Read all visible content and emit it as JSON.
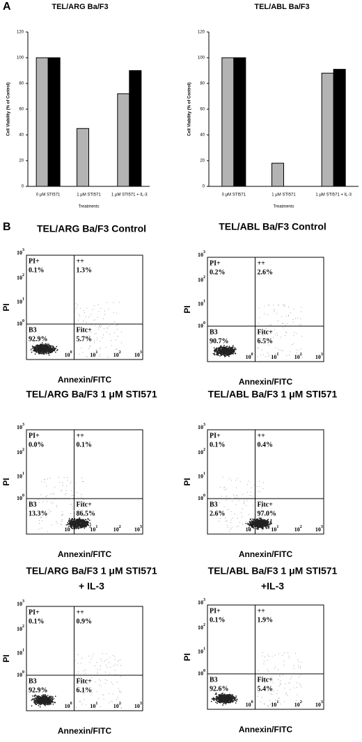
{
  "panel_a_label": "A",
  "chart_data": [
    {
      "type": "bar",
      "title": "TEL/ARG Ba/F3",
      "y_label": "Cell Viability (% of Control)",
      "x_label": "Treatments",
      "categories": [
        "0 μM STI571",
        "1 μM STI571",
        "1 μM STI571 + IL-3"
      ],
      "series": [
        {
          "color": "#b3b3b3",
          "values": [
            100,
            45,
            72
          ]
        },
        {
          "color": "#000000",
          "values": [
            100,
            null,
            90
          ]
        }
      ],
      "ylim": [
        0,
        120
      ],
      "yticks": [
        0,
        20,
        40,
        60,
        80,
        100,
        120
      ]
    },
    {
      "type": "bar",
      "title": "TEL/ABL Ba/F3",
      "y_label": "Cell Viability (% of Control)",
      "x_label": "Treatments",
      "categories": [
        "0 μM STI571",
        "1 μM STI571",
        "1 μM STI571 + IL-3"
      ],
      "series": [
        {
          "color": "#b3b3b3",
          "values": [
            100,
            18,
            88
          ]
        },
        {
          "color": "#000000",
          "values": [
            100,
            null,
            91
          ]
        }
      ],
      "ylim": [
        0,
        120
      ],
      "yticks": [
        0,
        20,
        40,
        60,
        80,
        100,
        120
      ]
    }
  ],
  "flow_plots": {
    "panel_label": "B",
    "y_label": "PI",
    "x_label": "Annexin/FITC",
    "tick_base": "10",
    "tick_exponents": [
      "0",
      "1",
      "2",
      "3"
    ],
    "plots": [
      {
        "title": [
          "TEL/ARG Ba/F3 Control"
        ],
        "quadrants": [
          {
            "label": "PI+",
            "percent": "0.1%"
          },
          {
            "label": "++",
            "percent": "1.3%"
          },
          {
            "label": "B3",
            "percent": "92.9%"
          },
          {
            "label": "Fitc+",
            "percent": "5.7%"
          }
        ]
      },
      {
        "title": [
          "TEL/ABL Ba/F3 Control"
        ],
        "quadrants": [
          {
            "label": "PI+",
            "percent": "0.2%"
          },
          {
            "label": "++",
            "percent": "2.6%"
          },
          {
            "label": "B3",
            "percent": "90.7%"
          },
          {
            "label": "Fitc+",
            "percent": "6.5%"
          }
        ]
      },
      {
        "title": [
          "TEL/ARG Ba/F3 1 μM STI571"
        ],
        "quadrants": [
          {
            "label": "PI+",
            "percent": "0.0%"
          },
          {
            "label": "++",
            "percent": "0.1%"
          },
          {
            "label": "B3",
            "percent": "13.3%"
          },
          {
            "label": "Fitc+",
            "percent": "86.5%"
          }
        ]
      },
      {
        "title": [
          "TEL/ABL Ba/F3  1 μM STI571"
        ],
        "quadrants": [
          {
            "label": "PI+",
            "percent": "0.1%"
          },
          {
            "label": "++",
            "percent": "0.4%"
          },
          {
            "label": "B3",
            "percent": "2.6%"
          },
          {
            "label": "Fitc+",
            "percent": "97.0%"
          }
        ]
      },
      {
        "title": [
          "TEL/ARG Ba/F3 1 μM STI571",
          "+ IL-3"
        ],
        "quadrants": [
          {
            "label": "PI+",
            "percent": "0.1%"
          },
          {
            "label": "++",
            "percent": "0.9%"
          },
          {
            "label": "B3",
            "percent": "92.9%"
          },
          {
            "label": "Fitc+",
            "percent": "6.1%"
          }
        ]
      },
      {
        "title": [
          "TEL/ABL Ba/F3  1 μM STI571",
          "+IL-3"
        ],
        "quadrants": [
          {
            "label": "PI+",
            "percent": "0.1%"
          },
          {
            "label": "++",
            "percent": "1.9%"
          },
          {
            "label": "B3",
            "percent": "92.6%"
          },
          {
            "label": "Fitc+",
            "percent": "5.4%"
          }
        ]
      }
    ]
  }
}
